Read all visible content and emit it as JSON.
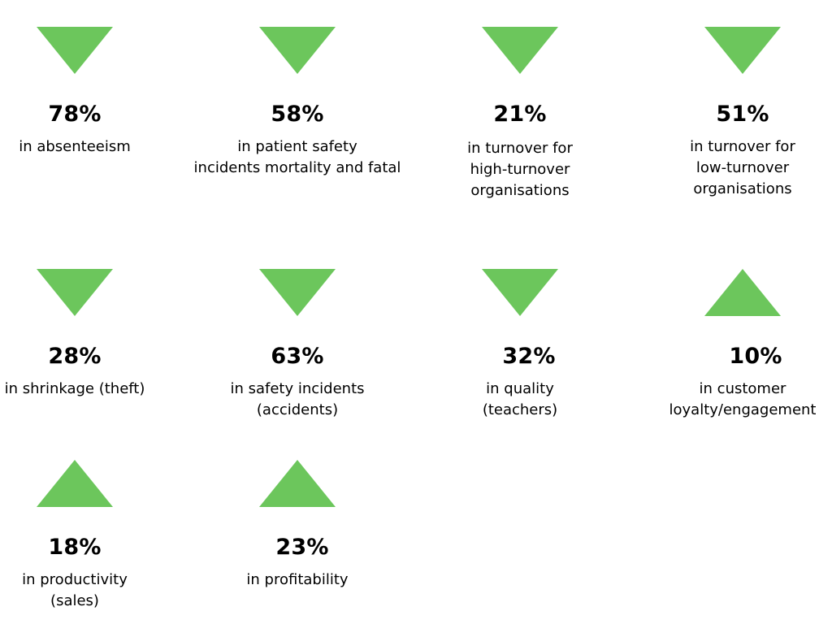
{
  "accent_color": "#6cc65c",
  "stats": [
    {
      "direction": "down",
      "icon": "triangle-down-icon",
      "value": "78%",
      "description": "in absenteeism"
    },
    {
      "direction": "down",
      "icon": "triangle-down-icon",
      "value": "58%",
      "description": "in patient safety\nincidents mortality and fatal"
    },
    {
      "direction": "down",
      "icon": "triangle-down-icon",
      "value": "21%",
      "description": "in turnover for\nhigh-turnover\norganisations"
    },
    {
      "direction": "down",
      "icon": "triangle-down-icon",
      "value": "51%",
      "description": "in turnover for\nlow-turnover\norganisations"
    },
    {
      "direction": "down",
      "icon": "triangle-down-icon",
      "value": "28%",
      "description": "in shrinkage (theft)"
    },
    {
      "direction": "down",
      "icon": "triangle-down-icon",
      "value": "63%",
      "description": "in safety incidents\n(accidents)"
    },
    {
      "direction": "down",
      "icon": "triangle-down-icon",
      "value": "32%",
      "description": "in quality\n(teachers)"
    },
    {
      "direction": "up",
      "icon": "triangle-up-icon",
      "value": "10%",
      "description": "in customer\nloyalty/engagement"
    },
    {
      "direction": "up",
      "icon": "triangle-up-icon",
      "value": "18%",
      "description": "in productivity\n(sales)"
    },
    {
      "direction": "up",
      "icon": "triangle-up-icon",
      "value": "23%",
      "description": "in profitability"
    }
  ]
}
